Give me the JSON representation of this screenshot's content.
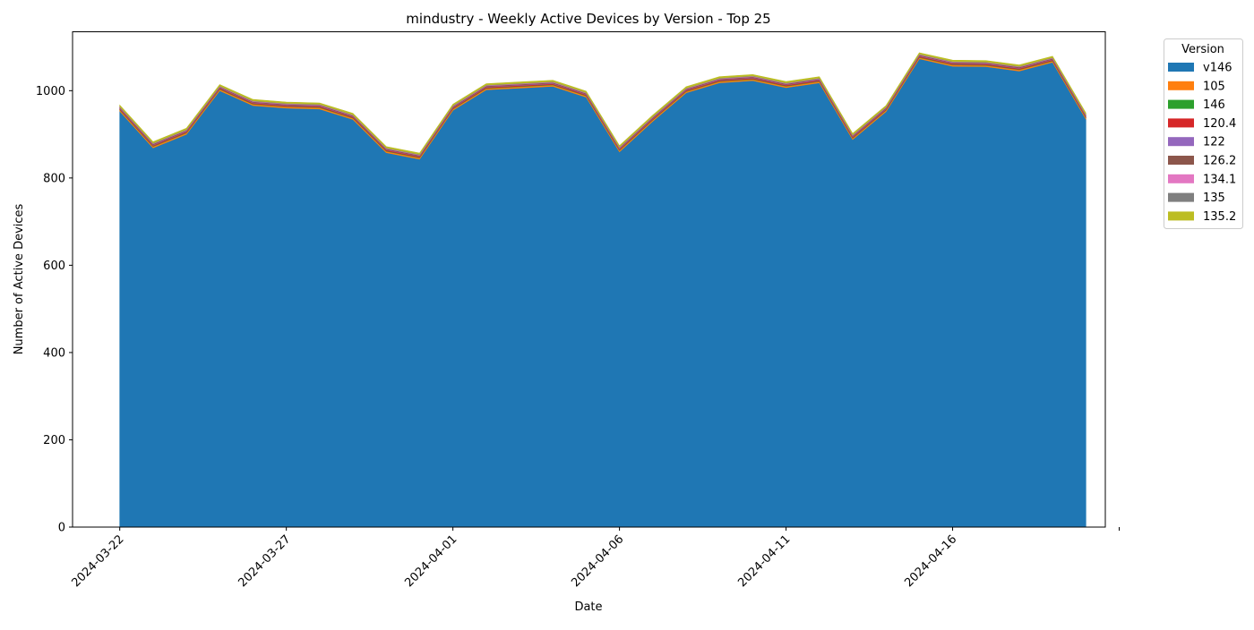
{
  "chart_data": {
    "type": "area",
    "title": "mindustry - Weekly Active Devices by Version - Top 25",
    "xlabel": "Date",
    "ylabel": "Number of Active Devices",
    "ylim": [
      0,
      1135
    ],
    "yticks": [
      0,
      200,
      400,
      600,
      800,
      1000
    ],
    "xlim": [
      "2024-03-20T14:00",
      "2024-04-20T14:00"
    ],
    "xticks": [
      "2024-03-22",
      "2024-03-27",
      "2024-04-01",
      "2024-04-06",
      "2024-04-11",
      "2024-04-16",
      "2024-04-21"
    ],
    "xtick_labels": [
      "2024-03-22",
      "2024-03-27",
      "2024-04-01",
      "2024-04-06",
      "2024-04-11",
      "2024-04-16",
      ""
    ],
    "grid": false,
    "legend": {
      "title": "Version",
      "placement": "outside-top-right"
    },
    "dates": [
      "2024-03-22",
      "2024-03-23",
      "2024-03-24",
      "2024-03-25",
      "2024-03-26",
      "2024-03-27",
      "2024-03-28",
      "2024-03-29",
      "2024-03-30",
      "2024-03-31",
      "2024-04-01",
      "2024-04-02",
      "2024-04-03",
      "2024-04-04",
      "2024-04-05",
      "2024-04-06",
      "2024-04-07",
      "2024-04-08",
      "2024-04-09",
      "2024-04-10",
      "2024-04-11",
      "2024-04-12",
      "2024-04-13",
      "2024-04-14",
      "2024-04-15",
      "2024-04-16",
      "2024-04-17",
      "2024-04-18",
      "2024-04-19",
      "2024-04-20"
    ],
    "series": [
      {
        "name": "v146",
        "color": "#1f77b4",
        "values": [
          953,
          869,
          900,
          1000,
          966,
          960,
          958,
          934,
          858,
          843,
          955,
          1002,
          1006,
          1010,
          985,
          860,
          930,
          995,
          1018,
          1023,
          1007,
          1018,
          888,
          952,
          1073,
          1056,
          1055,
          1045,
          1065,
          935
        ]
      },
      {
        "name": "105",
        "color": "#ff7f0e",
        "values": [
          3,
          3,
          3,
          3,
          3,
          3,
          3,
          3,
          3,
          3,
          3,
          3,
          3,
          3,
          3,
          3,
          3,
          3,
          3,
          3,
          3,
          3,
          3,
          3,
          3,
          3,
          3,
          3,
          3,
          3
        ]
      },
      {
        "name": "146",
        "color": "#2ca02c",
        "values": [
          1,
          1,
          1,
          1,
          1,
          1,
          1,
          1,
          1,
          1,
          1,
          1,
          1,
          1,
          1,
          1,
          1,
          1,
          1,
          1,
          1,
          1,
          1,
          1,
          1,
          1,
          1,
          1,
          1,
          1
        ]
      },
      {
        "name": "120.4",
        "color": "#d62728",
        "values": [
          2,
          2,
          2,
          2,
          2,
          2,
          2,
          2,
          2,
          2,
          2,
          2,
          2,
          2,
          2,
          2,
          2,
          2,
          2,
          2,
          2,
          2,
          2,
          2,
          2,
          2,
          2,
          2,
          2,
          2
        ]
      },
      {
        "name": "122",
        "color": "#9467bd",
        "values": [
          1,
          1,
          1,
          1,
          1,
          1,
          1,
          1,
          1,
          1,
          1,
          1,
          1,
          1,
          1,
          1,
          1,
          1,
          1,
          1,
          1,
          1,
          1,
          1,
          1,
          1,
          1,
          1,
          1,
          1
        ]
      },
      {
        "name": "126.2",
        "color": "#8c564b",
        "values": [
          2,
          2,
          2,
          2,
          2,
          2,
          2,
          2,
          2,
          2,
          2,
          2,
          2,
          2,
          2,
          2,
          2,
          2,
          2,
          2,
          2,
          2,
          2,
          2,
          2,
          2,
          2,
          2,
          2,
          2
        ]
      },
      {
        "name": "134.1",
        "color": "#e377c2",
        "values": [
          1,
          1,
          1,
          1,
          1,
          1,
          1,
          1,
          1,
          1,
          1,
          1,
          1,
          1,
          1,
          1,
          1,
          1,
          1,
          1,
          1,
          1,
          1,
          1,
          1,
          1,
          1,
          1,
          1,
          1
        ]
      },
      {
        "name": "135",
        "color": "#7f7f7f",
        "values": [
          1,
          1,
          1,
          1,
          1,
          1,
          1,
          1,
          1,
          1,
          1,
          1,
          1,
          1,
          1,
          1,
          1,
          1,
          1,
          1,
          1,
          1,
          1,
          1,
          1,
          1,
          1,
          1,
          1,
          1
        ]
      },
      {
        "name": "135.2",
        "color": "#bcbd22",
        "values": [
          3,
          3,
          3,
          3,
          3,
          3,
          3,
          3,
          3,
          3,
          3,
          3,
          3,
          3,
          3,
          3,
          3,
          3,
          3,
          3,
          3,
          3,
          3,
          3,
          3,
          3,
          3,
          3,
          3,
          3
        ]
      }
    ]
  }
}
